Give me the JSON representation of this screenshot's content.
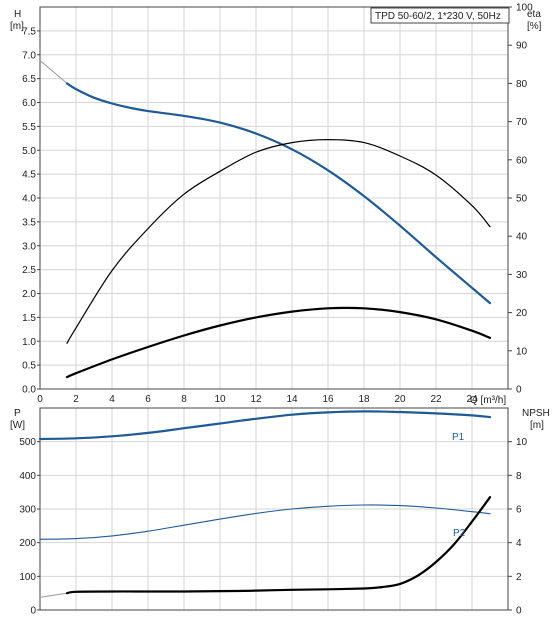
{
  "colors": {
    "blue": "#1f5a96",
    "black": "#000000",
    "grid": "#d4d4d4",
    "pump_line": "#999999"
  },
  "chart_data": [
    {
      "type": "line",
      "title": "TPD 50-60/2, 1*230 V, 50Hz",
      "xlabel": "Q [m³/h]",
      "ylabel_left_top": "H",
      "ylabel_left_unit": "[m]",
      "ylabel_right_top": "eta",
      "ylabel_right_unit": "[%]",
      "xlim": [
        0,
        26
      ],
      "ylim_left": [
        0,
        8
      ],
      "ylim_right": [
        0,
        100
      ],
      "grid": true,
      "x_ticks": [
        "0",
        "2",
        "4",
        "6",
        "8",
        "10",
        "12",
        "14",
        "16",
        "18",
        "20",
        "22",
        "24"
      ],
      "y_ticks_left": [
        "0.0",
        "0.5",
        "1.0",
        "1.5",
        "2.0",
        "2.5",
        "3.0",
        "3.5",
        "4.0",
        "4.5",
        "5.0",
        "5.5",
        "6.0",
        "6.5",
        "7.0",
        "7.5"
      ],
      "y_ticks_right": [
        "0",
        "10",
        "20",
        "30",
        "40",
        "50",
        "60",
        "70",
        "80",
        "90",
        "100"
      ],
      "series": [
        {
          "name": "",
          "axis": "left",
          "color": "#1f5a96",
          "width": 2.2,
          "x": [
            1.5,
            2,
            3,
            4,
            5,
            6,
            8,
            10,
            12,
            14,
            16,
            18,
            20,
            22,
            24,
            25
          ],
          "y": [
            6.4,
            6.28,
            6.1,
            5.98,
            5.89,
            5.82,
            5.72,
            5.58,
            5.35,
            5.02,
            4.58,
            4.04,
            3.42,
            2.76,
            2.12,
            1.8
          ]
        },
        {
          "name": "",
          "axis": "right",
          "color": "#000000",
          "width": 1.2,
          "x": [
            1.5,
            2,
            4,
            6,
            8,
            10,
            12,
            14,
            16,
            18,
            20,
            22,
            24,
            25
          ],
          "y": [
            12,
            16,
            31,
            42,
            51,
            57,
            62,
            64.5,
            65.3,
            64.5,
            61,
            56,
            48,
            42.5
          ]
        },
        {
          "name": "",
          "axis": "left",
          "color": "#000000",
          "width": 2.2,
          "x": [
            1.5,
            2,
            4,
            6,
            8,
            10,
            12,
            14,
            16,
            18,
            20,
            22,
            24,
            25
          ],
          "y": [
            0.25,
            0.33,
            0.62,
            0.88,
            1.12,
            1.33,
            1.5,
            1.62,
            1.69,
            1.69,
            1.61,
            1.46,
            1.22,
            1.07
          ]
        }
      ],
      "shutoff_line": {
        "x": [
          0,
          1.5
        ],
        "y": [
          6.88,
          6.4
        ]
      }
    },
    {
      "type": "line",
      "ylabel_left_top": "P",
      "ylabel_left_unit": "[W]",
      "ylabel_right_top": "NPSH",
      "ylabel_right_unit": "[m]",
      "xlim": [
        0,
        26
      ],
      "ylim_left": [
        0,
        600
      ],
      "ylim_right": [
        0,
        12
      ],
      "grid": true,
      "y_ticks_left": [
        "0",
        "100",
        "200",
        "300",
        "400",
        "500"
      ],
      "y_ticks_right": [
        "0",
        "2",
        "4",
        "6",
        "8",
        "10"
      ],
      "series": [
        {
          "name": "P1",
          "axis": "left",
          "color": "#1f5a96",
          "width": 2.2,
          "x": [
            0,
            2,
            4,
            6,
            8,
            10,
            12,
            14,
            16,
            18,
            20,
            22,
            24,
            25
          ],
          "y": [
            508,
            510,
            516,
            526,
            540,
            554,
            568,
            580,
            587,
            590,
            588,
            584,
            578,
            573
          ]
        },
        {
          "name": "P2",
          "axis": "left",
          "color": "#1f5a96",
          "width": 1.1,
          "x": [
            0,
            2,
            4,
            6,
            8,
            10,
            12,
            14,
            16,
            18,
            20,
            22,
            24,
            25
          ],
          "y": [
            210,
            212,
            220,
            234,
            252,
            270,
            287,
            300,
            308,
            312,
            310,
            303,
            292,
            286
          ]
        },
        {
          "name": "",
          "axis": "right",
          "color": "#000000",
          "width": 2.2,
          "x": [
            1.5,
            2,
            4,
            6,
            8,
            10,
            12,
            14,
            16,
            18,
            19,
            20,
            21,
            22,
            23,
            24,
            25
          ],
          "y": [
            1.0,
            1.08,
            1.1,
            1.1,
            1.1,
            1.12,
            1.15,
            1.2,
            1.23,
            1.28,
            1.36,
            1.55,
            2.05,
            2.85,
            3.9,
            5.25,
            6.7
          ]
        }
      ],
      "shutoff_line": {
        "axis": "right",
        "x": [
          0,
          1.5
        ],
        "y": [
          0.75,
          1.0
        ]
      },
      "annotations": [
        "P1",
        "P2"
      ]
    }
  ]
}
